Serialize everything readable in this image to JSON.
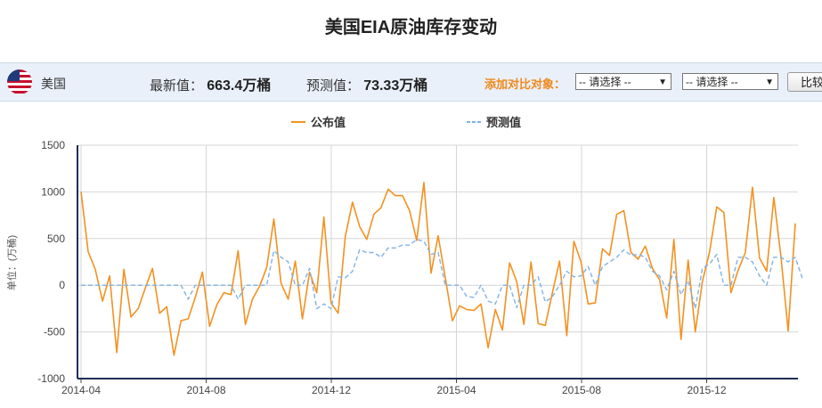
{
  "page": {
    "title": "美国EIA原油库存变动"
  },
  "info": {
    "country": "美国",
    "latest_label": "最新值：",
    "latest_value": "663.4万桶",
    "forecast_label": "预测值：",
    "forecast_value": "73.33万桶",
    "compare_label": "添加对比对象：",
    "select1": "-- 请选择 --",
    "select2": "-- 请选择 --",
    "compare_button": "比较"
  },
  "colors": {
    "actual": "#f39121",
    "forecast": "#7fb2e5"
  },
  "chart_data": {
    "type": "line",
    "title": "",
    "ylabel": "单位：(万桶)",
    "ylim": [
      -1000,
      1500
    ],
    "yticks": [
      "1500",
      "1000",
      "500",
      "0",
      "-500",
      "-1000"
    ],
    "x_tick_labels": [
      "2014-04",
      "2014-08",
      "2014-12",
      "2015-04",
      "2015-08",
      "2015-12"
    ],
    "grid": true,
    "legend_position": "top-center",
    "series": [
      {
        "name": "公布值",
        "style": "solid",
        "values": [
          1000,
          360,
          170,
          -170,
          100,
          -720,
          170,
          -340,
          -250,
          -30,
          180,
          -300,
          -230,
          -750,
          -380,
          -360,
          -130,
          140,
          -440,
          -210,
          -80,
          -100,
          370,
          -420,
          -150,
          -10,
          190,
          710,
          20,
          -150,
          260,
          -360,
          140,
          -80,
          730,
          -190,
          -300,
          520,
          890,
          630,
          490,
          760,
          830,
          1030,
          960,
          960,
          800,
          480,
          1100,
          130,
          530,
          80,
          -380,
          -220,
          -260,
          -270,
          -200,
          -670,
          -260,
          -480,
          240,
          40,
          -420,
          250,
          -410,
          -430,
          -80,
          260,
          -540,
          470,
          250,
          -200,
          -190,
          390,
          320,
          760,
          800,
          350,
          280,
          420,
          180,
          60,
          -350,
          490,
          -580,
          270,
          -500,
          40,
          360,
          840,
          780,
          -80,
          160,
          350,
          1050,
          290,
          150,
          940,
          300,
          -490,
          663.4
        ]
      },
      {
        "name": "预测值",
        "style": "dashed",
        "values": [
          0,
          0,
          0,
          0,
          0,
          0,
          0,
          0,
          0,
          0,
          0,
          0,
          0,
          0,
          0,
          -150,
          0,
          0,
          0,
          0,
          0,
          0,
          -150,
          0,
          0,
          0,
          0,
          370,
          300,
          250,
          0,
          0,
          180,
          -250,
          -200,
          -250,
          90,
          80,
          150,
          380,
          350,
          350,
          300,
          400,
          400,
          430,
          430,
          490,
          470,
          330,
          350,
          0,
          0,
          0,
          -120,
          -130,
          0,
          -170,
          -200,
          0,
          0,
          -240,
          0,
          0,
          90,
          -180,
          -120,
          0,
          150,
          90,
          100,
          200,
          0,
          200,
          250,
          300,
          380,
          320,
          330,
          300,
          150,
          100,
          -50,
          150,
          -100,
          50,
          -250,
          180,
          230,
          330,
          0,
          0,
          300,
          300,
          250,
          100,
          0,
          300,
          300,
          250,
          300,
          73.33
        ]
      }
    ]
  }
}
